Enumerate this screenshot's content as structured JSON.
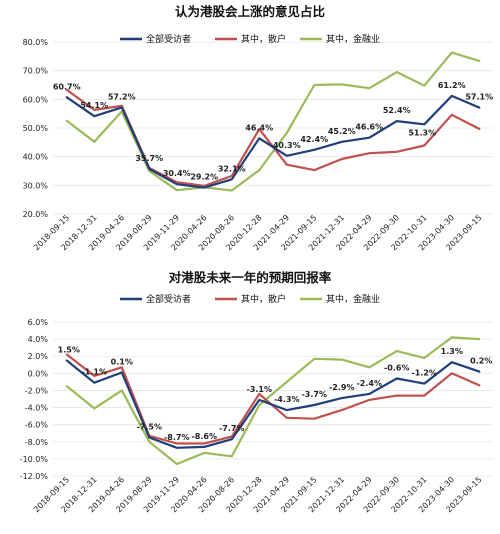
{
  "chart_data": [
    {
      "type": "line",
      "title": "认为港股会上涨的意见占比",
      "x": [
        "2018-09-15",
        "2018-12-31",
        "2019-04-26",
        "2019-08-29",
        "2019-11-29",
        "2020-04-26",
        "2020-08-26",
        "2020-12-28",
        "2021-04-29",
        "2021-09-15",
        "2021-12-31",
        "2022-04-29",
        "2022-09-30",
        "2022-10-31",
        "2023-04-30",
        "2023-09-15"
      ],
      "ylim": [
        20,
        80
      ],
      "yticks": [
        "20.0%",
        "30.0%",
        "40.0%",
        "50.0%",
        "60.0%",
        "70.0%",
        "80.0%"
      ],
      "yticks_values": [
        20,
        30,
        40,
        50,
        60,
        70,
        80
      ],
      "grid": true,
      "legend_position": "top",
      "series": [
        {
          "name": "全部受访者",
          "color": "#1f3f7a",
          "values": [
            60.7,
            54.1,
            57.2,
            35.7,
            30.4,
            29.2,
            32.1,
            46.4,
            40.3,
            42.4,
            45.2,
            46.6,
            52.4,
            51.3,
            61.2,
            57.1
          ]
        },
        {
          "name": "其中，散户",
          "color": "#c0504d",
          "values": [
            63.3,
            56.3,
            57.7,
            36.1,
            31.1,
            29.8,
            33.3,
            49.6,
            37.2,
            35.3,
            39.2,
            41.2,
            41.7,
            43.9,
            54.6,
            49.7
          ]
        },
        {
          "name": "其中，金融业",
          "color": "#9bbb59",
          "values": [
            52.5,
            45.2,
            55.8,
            35.0,
            28.3,
            29.3,
            28.2,
            35.3,
            48.3,
            65.0,
            65.2,
            63.9,
            69.5,
            64.8,
            76.3,
            73.4
          ]
        }
      ],
      "data_labels": [
        "60.7%",
        "54.1%",
        "57.2%",
        "35.7%",
        "30.4%",
        "29.2%",
        "32.1%",
        "46.4%",
        "40.3%",
        "42.4%",
        "45.2%",
        "46.6%",
        "52.4%",
        "51.3%",
        "61.2%",
        "57.1%"
      ]
    },
    {
      "type": "line",
      "title": "对港股未来一年的预期回报率",
      "x": [
        "2018-09-15",
        "2018-12-31",
        "2019-04-26",
        "2019-08-29",
        "2019-11-29",
        "2020-04-26",
        "2020-08-26",
        "2020-12-28",
        "2021-04-29",
        "2021-09-15",
        "2021-12-31",
        "2022-04-29",
        "2022-09-30",
        "2022-10-31",
        "2023-04-30",
        "2023-09-15"
      ],
      "ylim": [
        -12,
        6
      ],
      "yticks": [
        "-12.0%",
        "-10.0%",
        "-8.0%",
        "-6.0%",
        "-4.0%",
        "-2.0%",
        "0.0%",
        "2.0%",
        "4.0%",
        "6.0%"
      ],
      "yticks_values": [
        -12,
        -10,
        -8,
        -6,
        -4,
        -2,
        0,
        2,
        4,
        6
      ],
      "grid": true,
      "legend_position": "top",
      "series": [
        {
          "name": "全部受访者",
          "color": "#1f3f7a",
          "values": [
            1.5,
            -1.1,
            0.1,
            -7.5,
            -8.7,
            -8.6,
            -7.7,
            -3.1,
            -4.3,
            -3.7,
            -2.9,
            -2.4,
            -0.6,
            -1.2,
            1.3,
            0.2
          ]
        },
        {
          "name": "其中，散户",
          "color": "#c0504d",
          "values": [
            2.2,
            -0.3,
            0.7,
            -7.3,
            -8.2,
            -8.2,
            -7.4,
            -2.4,
            -5.2,
            -5.3,
            -4.3,
            -3.1,
            -2.6,
            -2.6,
            0.0,
            -1.4
          ]
        },
        {
          "name": "其中，金融业",
          "color": "#9bbb59",
          "values": [
            -1.5,
            -4.1,
            -2.0,
            -8.0,
            -10.6,
            -9.3,
            -9.7,
            -3.7,
            -1.0,
            1.7,
            1.6,
            0.7,
            2.6,
            1.8,
            4.2,
            4.0
          ]
        }
      ],
      "data_labels": [
        "1.5%",
        "-1.1%",
        "0.1%",
        "-7.5%",
        "-8.7%",
        "-8.6%",
        "-7.7%",
        "-3.1%",
        "-4.3%",
        "-3.7%",
        "-2.9%",
        "-2.4%",
        "-0.6%",
        "-1.2%",
        "1.3%",
        "0.2%"
      ]
    }
  ]
}
